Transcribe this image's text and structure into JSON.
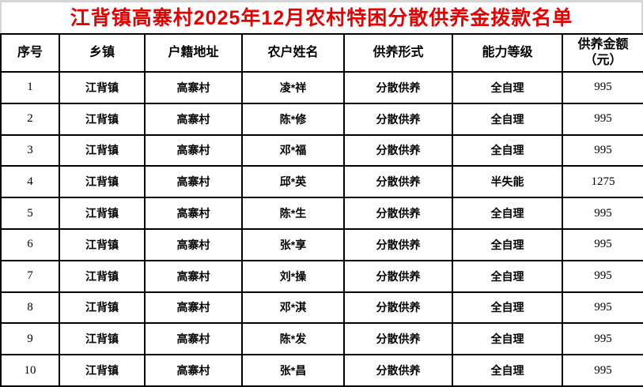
{
  "title": "江背镇高寨村2025年12月农村特困分散供养金拨款名单",
  "colors": {
    "title_text": "#e60000",
    "grid_border": "#000000",
    "background": "#ffffff"
  },
  "table": {
    "headers": [
      {
        "text": "序号"
      },
      {
        "text": "乡镇"
      },
      {
        "text": "户籍地址"
      },
      {
        "text": "农户姓名"
      },
      {
        "text": "供养形式"
      },
      {
        "text": "能力等级"
      },
      {
        "text": "供养金额",
        "text2": "（元）"
      }
    ],
    "rows": [
      {
        "seq": "1",
        "town": "江背镇",
        "address": "高寨村",
        "name": "凌*祥",
        "form": "分散供养",
        "level": "全自理",
        "amount": "995"
      },
      {
        "seq": "2",
        "town": "江背镇",
        "address": "高寨村",
        "name": "陈*修",
        "form": "分散供养",
        "level": "全自理",
        "amount": "995"
      },
      {
        "seq": "3",
        "town": "江背镇",
        "address": "高寨村",
        "name": "邓*福",
        "form": "分散供养",
        "level": "全自理",
        "amount": "995"
      },
      {
        "seq": "4",
        "town": "江背镇",
        "address": "高寨村",
        "name": "邱*英",
        "form": "分散供养",
        "level": "半失能",
        "amount": "1275"
      },
      {
        "seq": "5",
        "town": "江背镇",
        "address": "高寨村",
        "name": "陈*生",
        "form": "分散供养",
        "level": "全自理",
        "amount": "995"
      },
      {
        "seq": "6",
        "town": "江背镇",
        "address": "高寨村",
        "name": "张*享",
        "form": "分散供养",
        "level": "全自理",
        "amount": "995"
      },
      {
        "seq": "7",
        "town": "江背镇",
        "address": "高寨村",
        "name": "刘*操",
        "form": "分散供养",
        "level": "全自理",
        "amount": "995"
      },
      {
        "seq": "8",
        "town": "江背镇",
        "address": "高寨村",
        "name": "邓*淇",
        "form": "分散供养",
        "level": "全自理",
        "amount": "995"
      },
      {
        "seq": "9",
        "town": "江背镇",
        "address": "高寨村",
        "name": "陈*发",
        "form": "分散供养",
        "level": "全自理",
        "amount": "995"
      },
      {
        "seq": "10",
        "town": "江背镇",
        "address": "高寨村",
        "name": "张*昌",
        "form": "分散供养",
        "level": "全自理",
        "amount": "995"
      }
    ]
  }
}
